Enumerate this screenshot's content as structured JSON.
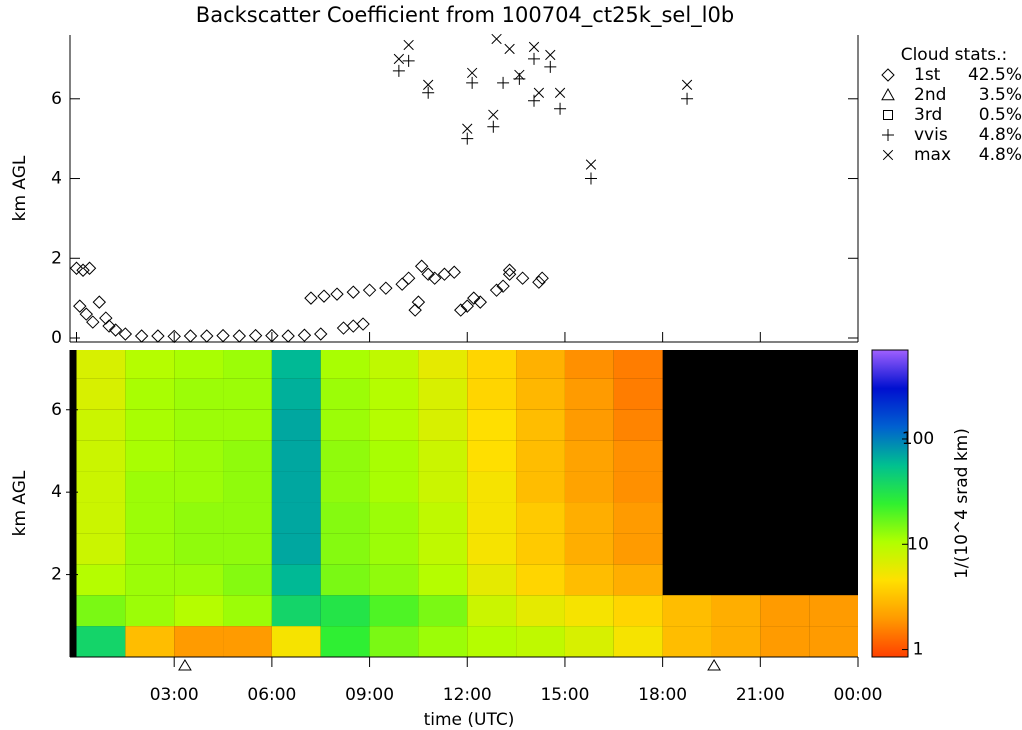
{
  "chart_data": [
    {
      "type": "scatter",
      "title": "Backscatter Coefficient from 100704_ct25k_sel_l0b",
      "ylabel": "km AGL",
      "xlim": [
        -0.2,
        24
      ],
      "xticks": [
        0,
        3,
        6,
        9,
        12,
        15,
        18,
        21,
        24
      ],
      "ylim": [
        -0.1,
        7.6
      ],
      "yticks": [
        0,
        2,
        4,
        6
      ],
      "legend": {
        "title": "Cloud stats.:",
        "position": "right"
      },
      "series": [
        {
          "name": "1st",
          "marker": "diamond",
          "color": "#000000",
          "share": {
            "value": 42.5,
            "label": "42.5%"
          },
          "x": [
            0.0,
            0.2,
            0.4,
            0.1,
            0.3,
            0.5,
            0.7,
            0.9,
            1.0,
            1.2,
            1.5,
            2,
            2.5,
            3,
            3.5,
            4,
            4.5,
            5,
            5.5,
            6,
            6.5,
            7,
            7.5,
            7.2,
            7.6,
            8,
            8.5,
            9,
            9.5,
            10,
            10.2,
            8.2,
            8.5,
            8.8,
            10.4,
            10.5,
            10.6,
            10.8,
            11,
            11.3,
            11.6,
            11.8,
            12,
            12.2,
            12.4,
            12.9,
            13.1,
            13.3,
            13.3,
            13.7,
            14.2,
            14.3
          ],
          "y": [
            1.75,
            1.7,
            1.75,
            0.8,
            0.6,
            0.4,
            0.9,
            0.5,
            0.3,
            0.2,
            0.1,
            0.05,
            0.05,
            0.04,
            0.05,
            0.05,
            0.06,
            0.05,
            0.06,
            0.06,
            0.05,
            0.07,
            0.1,
            1.0,
            1.05,
            1.1,
            1.15,
            1.2,
            1.25,
            1.35,
            1.5,
            0.25,
            0.3,
            0.35,
            0.7,
            0.9,
            1.8,
            1.6,
            1.5,
            1.6,
            1.65,
            0.7,
            0.8,
            1.0,
            0.9,
            1.2,
            1.3,
            1.7,
            1.6,
            1.5,
            1.4,
            1.5
          ]
        },
        {
          "name": "2nd",
          "marker": "triangle",
          "color": "#000000",
          "share": {
            "value": 3.5,
            "label": "3.5%"
          },
          "x": [],
          "y": []
        },
        {
          "name": "3rd",
          "marker": "square",
          "color": "#000000",
          "share": {
            "value": 0.5,
            "label": "0.5%"
          },
          "x": [],
          "y": []
        },
        {
          "name": "vvis",
          "marker": "plus",
          "color": "#000000",
          "share": {
            "value": 4.8,
            "label": "4.8%"
          },
          "x": [
            9.9,
            10.2,
            10.8,
            12.0,
            12.15,
            12.8,
            13.1,
            13.6,
            14.05,
            14.05,
            14.55,
            14.85,
            15.8,
            18.75
          ],
          "y": [
            6.7,
            6.95,
            6.15,
            5.0,
            6.4,
            5.3,
            6.4,
            6.5,
            5.95,
            7.0,
            6.8,
            5.75,
            4.0,
            6.0
          ]
        },
        {
          "name": "max",
          "marker": "x",
          "color": "#000000",
          "share": {
            "value": 4.8,
            "label": "4.8%"
          },
          "x": [
            9.9,
            10.2,
            10.8,
            12.0,
            12.15,
            12.8,
            12.9,
            13.3,
            13.6,
            14.05,
            14.2,
            14.55,
            14.85,
            15.8,
            18.75
          ],
          "y": [
            7.0,
            7.35,
            6.35,
            5.25,
            6.65,
            5.6,
            7.5,
            7.25,
            6.6,
            7.3,
            6.15,
            7.1,
            6.15,
            4.35,
            6.35
          ]
        }
      ]
    },
    {
      "type": "heatmap",
      "xlabel": "time (UTC)",
      "ylabel": "km AGL",
      "xlim": [
        -0.2,
        24
      ],
      "xticks": [
        {
          "value": 3,
          "label": "03:00"
        },
        {
          "value": 6,
          "label": "06:00"
        },
        {
          "value": 9,
          "label": "09:00"
        },
        {
          "value": 12,
          "label": "12:00"
        },
        {
          "value": 15,
          "label": "15:00"
        },
        {
          "value": 18,
          "label": "18:00"
        },
        {
          "value": 21,
          "label": "21:00"
        },
        {
          "value": 24,
          "label": "00:00"
        }
      ],
      "ylim": [
        0,
        7.45
      ],
      "yticks": [
        2,
        4,
        6
      ],
      "background": "#000000",
      "x_bins": [
        0,
        1.5,
        3,
        4.5,
        6,
        7.5,
        9,
        10.5,
        12,
        13.5,
        15,
        16.5,
        18,
        19.5,
        21,
        22.5,
        24
      ],
      "y_bins": [
        0,
        0.75,
        1.5,
        2.25,
        3,
        3.75,
        4.5,
        5.25,
        6,
        6.75,
        7.5
      ],
      "z": [
        [
          40,
          3,
          2,
          2,
          5,
          25,
          15,
          12,
          10,
          9,
          7,
          5,
          3,
          2.5,
          2,
          2
        ],
        [
          15,
          12,
          10,
          12,
          40,
          30,
          20,
          15,
          8,
          6,
          5,
          4,
          3,
          2.5,
          2,
          2
        ],
        [
          10,
          12,
          12,
          14,
          60,
          15,
          13,
          10,
          6,
          4,
          3,
          2.5,
          null,
          null,
          null,
          null
        ],
        [
          8,
          12,
          13,
          13,
          70,
          14,
          12,
          9,
          5,
          3.5,
          2.5,
          2,
          null,
          null,
          null,
          null
        ],
        [
          8,
          12,
          13,
          13,
          70,
          14,
          12,
          9,
          5,
          3.5,
          2.5,
          2,
          null,
          null,
          null,
          null
        ],
        [
          8,
          12,
          12,
          13,
          70,
          13,
          11,
          8,
          5,
          3,
          2.2,
          1.8,
          null,
          null,
          null,
          null
        ],
        [
          8,
          11,
          12,
          13,
          70,
          13,
          11,
          8,
          4.5,
          3,
          2.2,
          1.8,
          null,
          null,
          null,
          null
        ],
        [
          8,
          11,
          12,
          12,
          70,
          12,
          10,
          7,
          4.5,
          3,
          2,
          1.6,
          null,
          null,
          null,
          null
        ],
        [
          7,
          11,
          12,
          12,
          65,
          12,
          10,
          7,
          4,
          2.8,
          2,
          1.5,
          null,
          null,
          null,
          null
        ],
        [
          7,
          10,
          11,
          12,
          60,
          11,
          9,
          6,
          4,
          2.6,
          1.8,
          1.5,
          null,
          null,
          null,
          null
        ]
      ],
      "color_scale": "log",
      "clim": [
        0.85,
        700
      ],
      "cticks": [
        1,
        10,
        100
      ],
      "clabel": "1/(10^4 srad km)",
      "colormap": [
        "#ff4000",
        "#ff9a00",
        "#ffe000",
        "#b0ff00",
        "#30f030",
        "#00c090",
        "#0060d0",
        "#0010d0",
        "#a060ff"
      ],
      "markers": [
        3.33,
        19.58
      ]
    }
  ]
}
